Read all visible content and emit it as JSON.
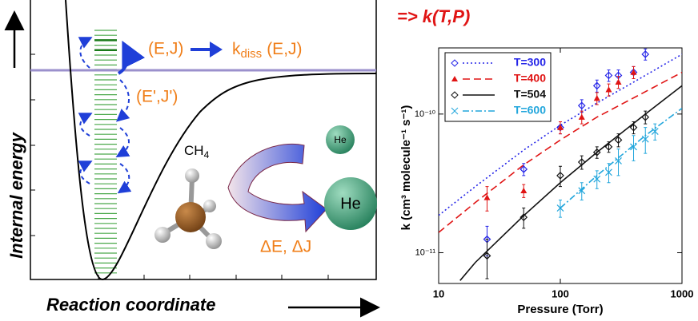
{
  "diagram": {
    "y_axis_label": "Internal energy",
    "x_axis_label": "Reaction coordinate",
    "state_label": "(E,J)",
    "rate_label": [
      "k",
      "diss",
      "(E,J)"
    ],
    "lower_state_label": "(E',J')",
    "molecule_label": [
      "CH",
      "4"
    ],
    "small_atom_label": "He",
    "large_atom_label": "He",
    "transfer_label": "ΔE, ΔJ"
  },
  "chart_data": {
    "type": "scatter",
    "title": "=> k(T,P)",
    "x_label": "Pressure (Torr)",
    "y_label": "k (cm³ molecule⁻¹ s⁻¹)",
    "xscale": "log",
    "yscale": "log",
    "xlim": [
      10,
      1000
    ],
    "ylim": [
      6e-12,
      3e-10
    ],
    "xticks": [
      10,
      100,
      1000
    ],
    "yticks": [
      {
        "value": 1e-11,
        "label": "10⁻¹¹"
      },
      {
        "value": 1e-10,
        "label": "10⁻¹⁰"
      }
    ],
    "legend": "top-left",
    "series": [
      {
        "name": "T=300",
        "color": "#2424e8",
        "marker": "diamond",
        "linestyle": "dotted",
        "x": [
          25,
          50,
          100,
          150,
          200,
          250,
          300,
          400,
          500
        ],
        "values": [
          1.25e-11,
          4e-11,
          8e-11,
          1.15e-10,
          1.6e-10,
          1.9e-10,
          1.9e-10,
          2e-10,
          2.7e-10
        ],
        "errors": [
          3e-12,
          4e-12,
          8e-12,
          1.2e-11,
          1.6e-11,
          1.8e-11,
          1.8e-11,
          2e-11,
          2.5e-11
        ],
        "fit": {
          "x": [
            10,
            20,
            50,
            100,
            200,
            500,
            1000
          ],
          "values": [
            1.86e-11,
            3e-11,
            5.5e-11,
            8.3e-11,
            1.2e-10,
            1.9e-10,
            2.7e-10
          ]
        }
      },
      {
        "name": "T=400",
        "color": "#e01414",
        "marker": "triangle",
        "linestyle": "dashed",
        "x": [
          25,
          50,
          100,
          150,
          200,
          250,
          300,
          400
        ],
        "values": [
          2.5e-11,
          2.8e-11,
          8e-11,
          9.5e-11,
          1.3e-10,
          1.5e-10,
          1.7e-10,
          2e-10
        ],
        "errors": [
          5e-12,
          3e-12,
          8e-12,
          1e-11,
          1.3e-11,
          1.5e-11,
          1.7e-11,
          2e-11
        ],
        "fit": {
          "x": [
            10,
            20,
            50,
            100,
            200,
            500,
            1000
          ],
          "values": [
            1.4e-11,
            2.3e-11,
            4.3e-11,
            6.5e-11,
            9.5e-11,
            1.45e-10,
            2e-10
          ]
        }
      },
      {
        "name": "T=504",
        "color": "#111111",
        "marker": "diamond",
        "linestyle": "solid",
        "x": [
          25,
          50,
          100,
          150,
          200,
          250,
          300,
          400,
          500
        ],
        "values": [
          9.5e-12,
          1.8e-11,
          3.6e-11,
          4.5e-11,
          5.3e-11,
          5.8e-11,
          6.5e-11,
          8e-11,
          9.5e-11
        ],
        "errors": [
          3e-12,
          3e-12,
          6e-12,
          5e-12,
          5e-12,
          5e-12,
          7e-12,
          8e-12,
          1e-11
        ],
        "fit": {
          "x": [
            15,
            20,
            50,
            100,
            200,
            500,
            1000
          ],
          "values": [
            6.3e-12,
            8.5e-12,
            1.85e-11,
            3.2e-11,
            5.3e-11,
            1e-10,
            1.6e-10
          ]
        }
      },
      {
        "name": "T=600",
        "color": "#22a6dc",
        "marker": "x",
        "linestyle": "dashdot",
        "x": [
          100,
          150,
          200,
          250,
          300,
          400,
          500,
          600
        ],
        "values": [
          2.1e-11,
          2.8e-11,
          3.4e-11,
          3.8e-11,
          4.6e-11,
          5.8e-11,
          6.6e-11,
          7.5e-11
        ],
        "errors": [
          3e-12,
          4e-12,
          5e-12,
          6e-12,
          1e-11,
          1.2e-11,
          1.4e-11,
          1e-11
        ],
        "fit": {
          "x": [
            100,
            200,
            500,
            1000
          ],
          "values": [
            2.1e-11,
            3.6e-11,
            7e-11,
            1.1e-10
          ]
        }
      }
    ]
  }
}
